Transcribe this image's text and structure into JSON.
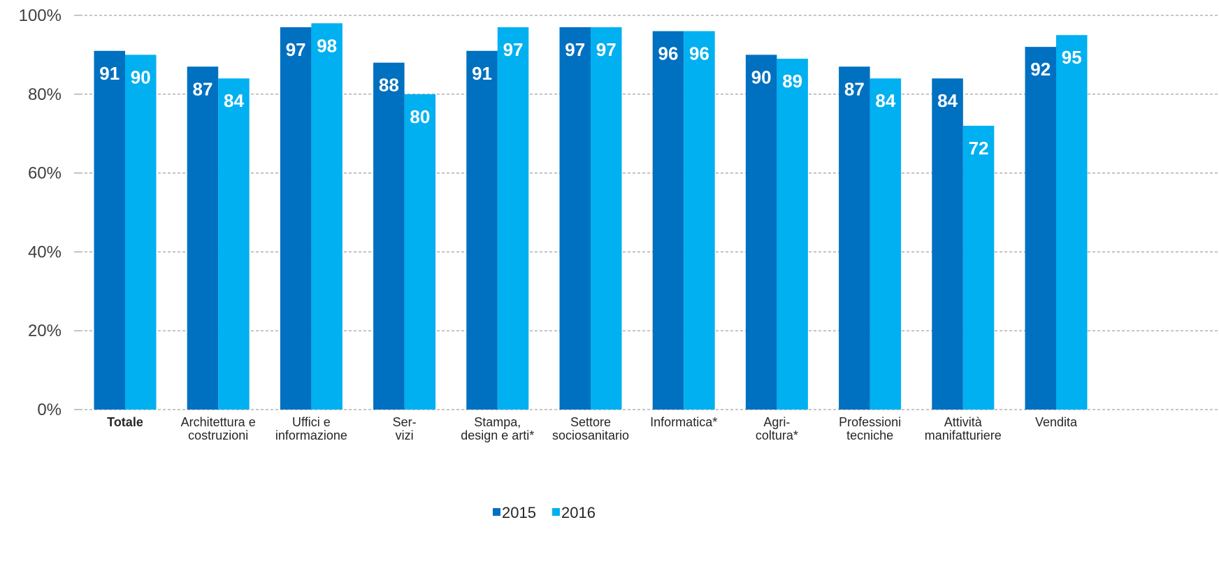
{
  "chart_data": {
    "type": "bar",
    "title": "",
    "xlabel": "",
    "ylabel": "",
    "ylim": [
      0,
      100
    ],
    "yticks": [
      "0%",
      "20%",
      "40%",
      "60%",
      "80%",
      "100%"
    ],
    "grid": true,
    "legend_position": "bottom-center",
    "categories": [
      [
        "Totale"
      ],
      [
        "Architettura e",
        "costruzioni"
      ],
      [
        "Uffici e",
        "informazione"
      ],
      [
        "Ser-",
        "vizi"
      ],
      [
        "Stampa,",
        "design e arti*"
      ],
      [
        "Settore",
        "sociosanitario"
      ],
      [
        "Informatica*"
      ],
      [
        "Agri-",
        "coltura*"
      ],
      [
        "Professioni",
        "tecniche"
      ],
      [
        "Attività",
        "manifatturiere"
      ],
      [
        "Vendita"
      ]
    ],
    "bold_categories": [
      0
    ],
    "series": [
      {
        "name": "2015",
        "color": "#0070C0",
        "values": [
          91,
          87,
          97,
          88,
          91,
          97,
          96,
          90,
          87,
          84,
          92
        ]
      },
      {
        "name": "2016",
        "color": "#00B0F0",
        "values": [
          90,
          84,
          98,
          80,
          97,
          97,
          96,
          89,
          84,
          72,
          95
        ]
      }
    ]
  }
}
